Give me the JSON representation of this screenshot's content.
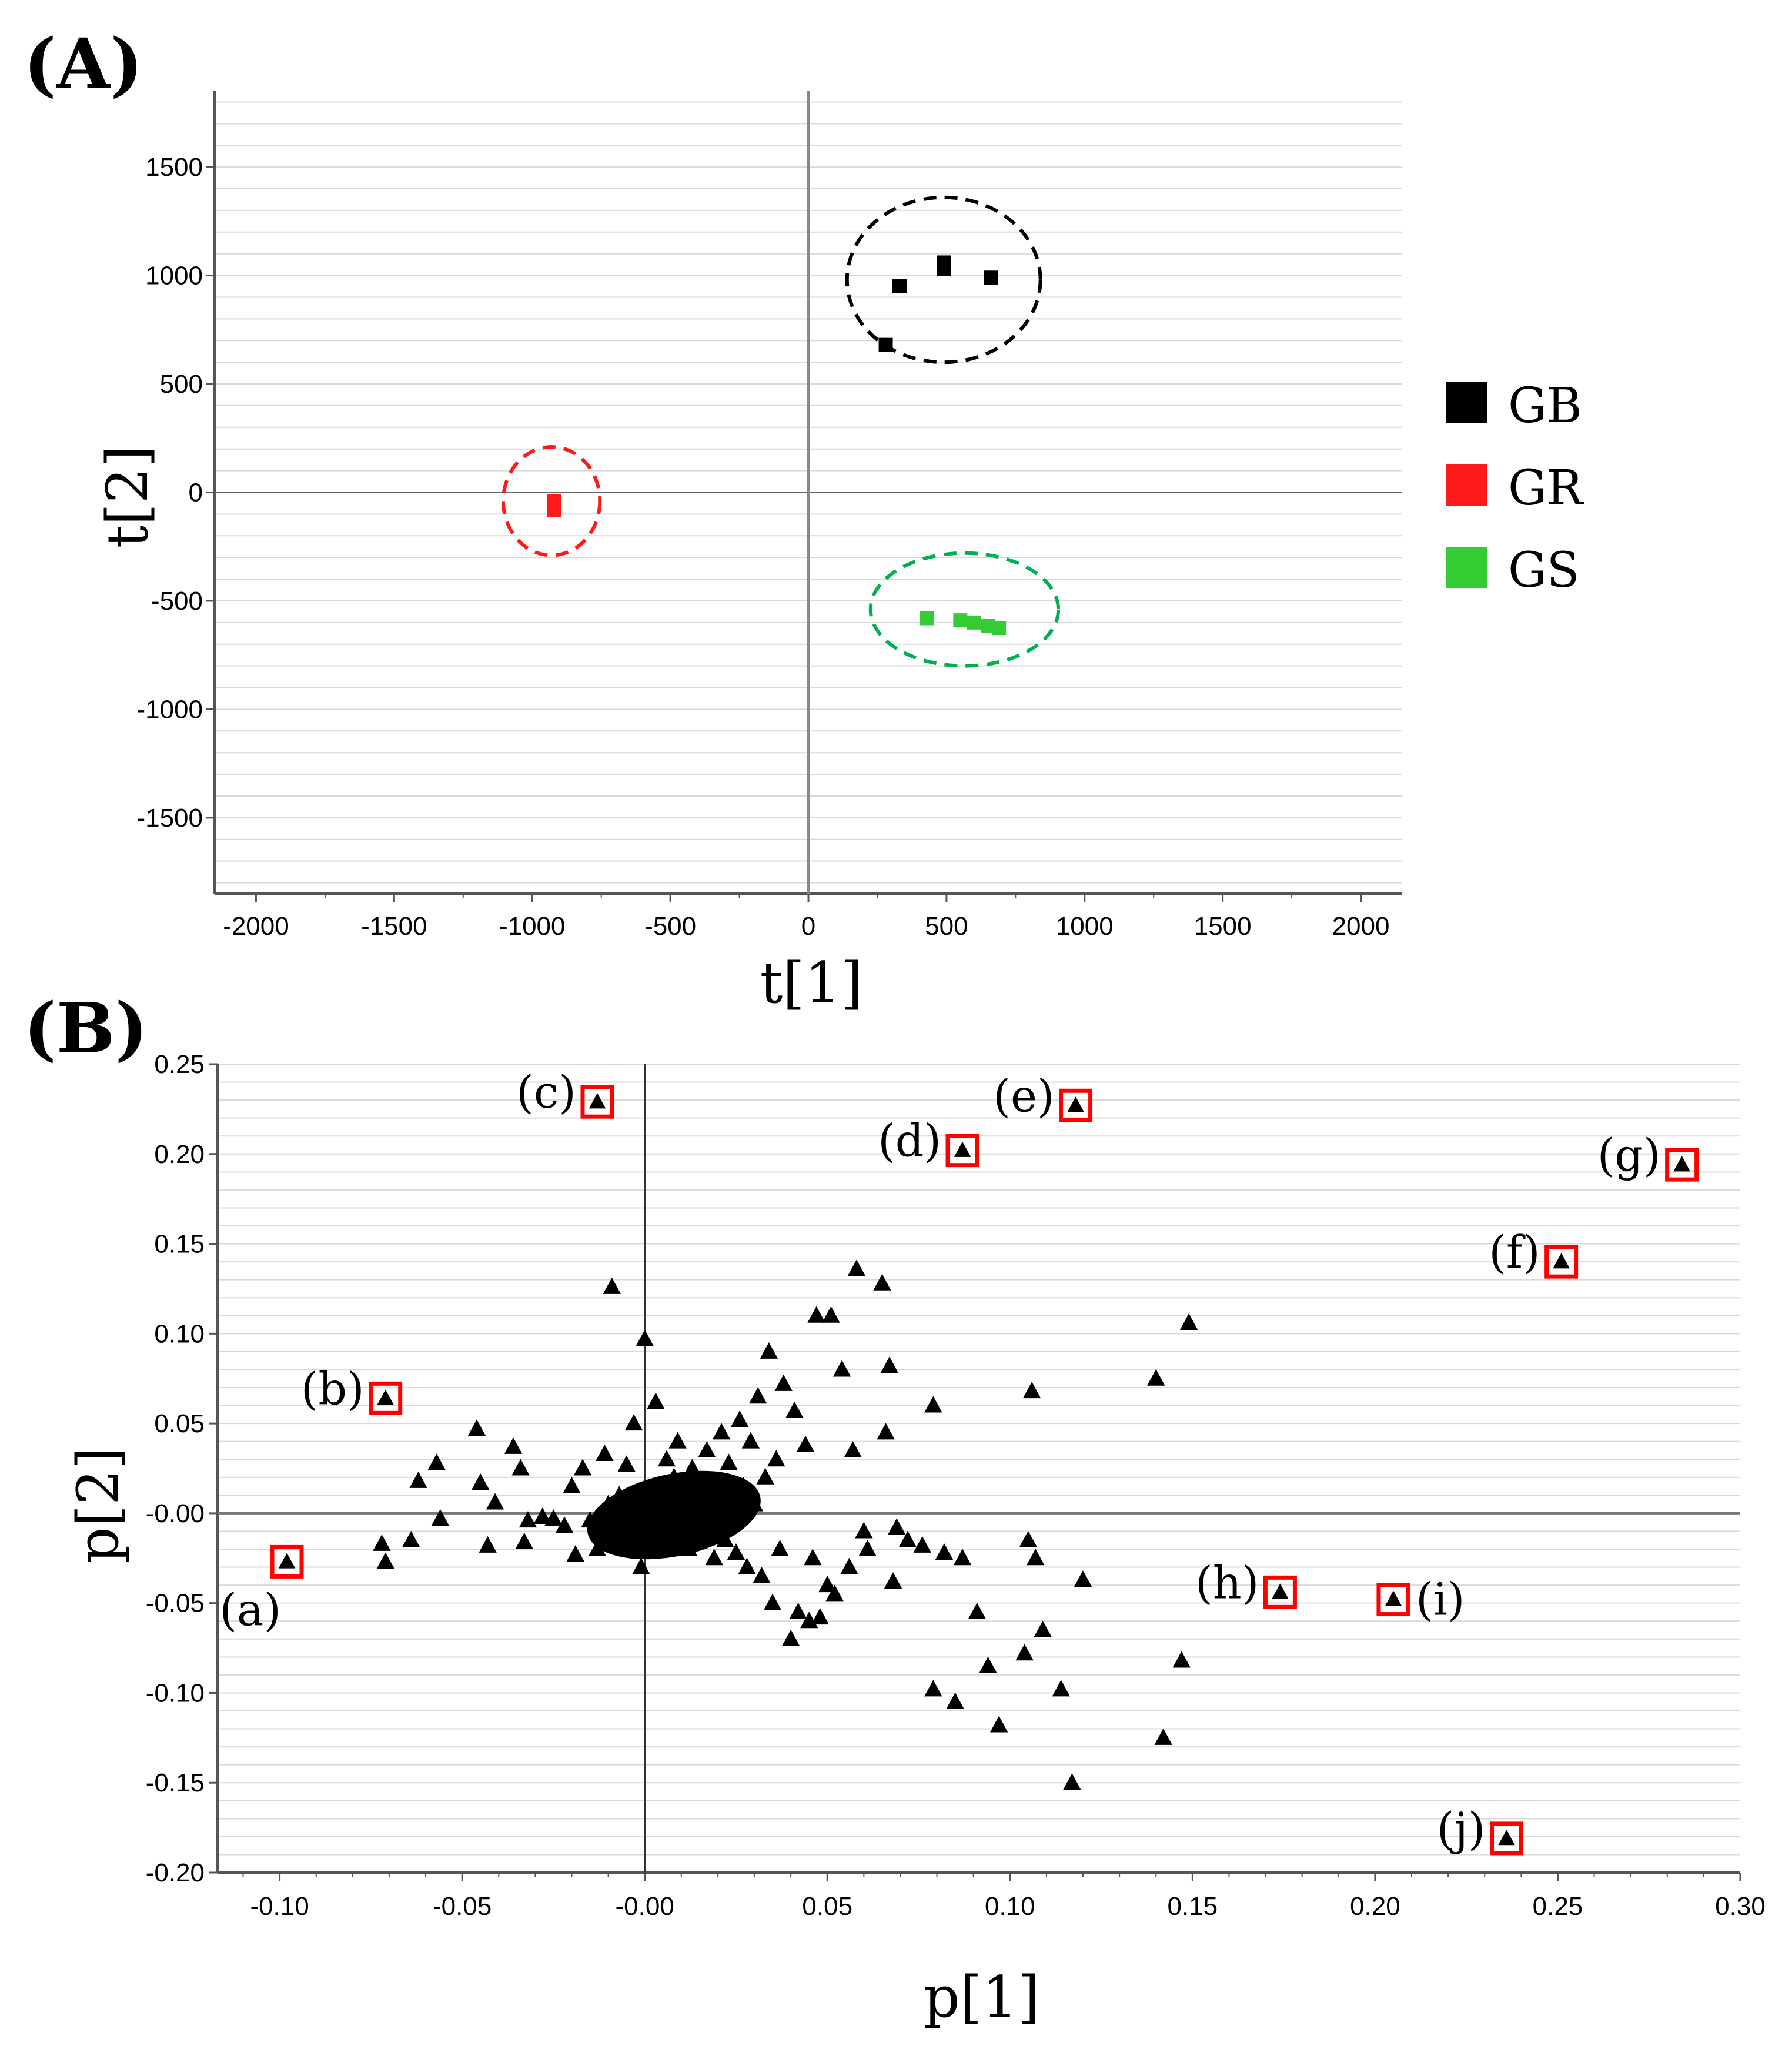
{
  "panels": {
    "a_label": "(A)",
    "b_label": "(B)"
  },
  "chart_data": [
    {
      "type": "scatter",
      "title": "",
      "xlabel": "t[1]",
      "ylabel": "t[2]",
      "xlim": [
        -2150,
        2150
      ],
      "ylim": [
        -1850,
        1850
      ],
      "xticks": [
        -2000,
        -1500,
        -1000,
        -500,
        0,
        500,
        1000,
        1500,
        2000
      ],
      "yticks": [
        -1500,
        -1000,
        -500,
        0,
        500,
        1000,
        1500
      ],
      "grid": "horizontal",
      "legend_position": "right",
      "series": [
        {
          "name": "GB",
          "color": "#000000",
          "points": [
            [
              330,
              950
            ],
            [
              490,
              1060
            ],
            [
              490,
              1030
            ],
            [
              660,
              990
            ],
            [
              280,
              680
            ]
          ],
          "ellipse": {
            "cx": 490,
            "cy": 980,
            "rx": 350,
            "ry": 380,
            "color": "#000000"
          }
        },
        {
          "name": "GR",
          "color": "#ff1a1a",
          "points": [
            [
              -920,
              -40
            ],
            [
              -920,
              -80
            ]
          ],
          "ellipse": {
            "cx": -930,
            "cy": -40,
            "rx": 175,
            "ry": 250,
            "color": "#ff1a1a"
          }
        },
        {
          "name": "GS",
          "color": "#33cc33",
          "points": [
            [
              430,
              -580
            ],
            [
              550,
              -590
            ],
            [
              600,
              -600
            ],
            [
              650,
              -615
            ],
            [
              690,
              -625
            ]
          ],
          "ellipse": {
            "cx": 565,
            "cy": -540,
            "rx": 340,
            "ry": 260,
            "color": "#00b050"
          }
        }
      ]
    },
    {
      "type": "scatter",
      "title": "",
      "xlabel": "p[1]",
      "ylabel": "p[2]",
      "xlim": [
        -0.117,
        0.3
      ],
      "ylim": [
        -0.2,
        0.25
      ],
      "xticks": [
        "-0.10",
        "-0.05",
        "-0.00",
        "0.05",
        "0.10",
        "0.15",
        "0.20",
        "0.25",
        "0.30"
      ],
      "xtick_values": [
        -0.1,
        -0.05,
        0.0,
        0.05,
        0.1,
        0.15,
        0.2,
        0.25,
        0.3
      ],
      "yticks": [
        "0.25",
        "0.20",
        "0.15",
        "0.10",
        "0.05",
        "-0.00",
        "-0.05",
        "-0.10",
        "-0.15",
        "-0.20"
      ],
      "ytick_values": [
        0.25,
        0.2,
        0.15,
        0.1,
        0.05,
        0.0,
        -0.05,
        -0.1,
        -0.15,
        -0.2
      ],
      "grid": "horizontal",
      "marker": "triangle",
      "points": [
        [
          -0.072,
          -0.017
        ],
        [
          -0.071,
          -0.027
        ],
        [
          -0.064,
          -0.015
        ],
        [
          -0.062,
          0.018
        ],
        [
          -0.057,
          0.028
        ],
        [
          -0.056,
          -0.003
        ],
        [
          -0.046,
          0.047
        ],
        [
          -0.045,
          0.017
        ],
        [
          -0.043,
          -0.018
        ],
        [
          -0.041,
          0.006
        ],
        [
          -0.036,
          0.037
        ],
        [
          -0.034,
          0.025
        ],
        [
          -0.033,
          -0.016
        ],
        [
          -0.032,
          -0.004
        ],
        [
          -0.028,
          -0.002
        ],
        [
          -0.025,
          -0.003
        ],
        [
          -0.022,
          -0.007
        ],
        [
          -0.02,
          0.015
        ],
        [
          -0.019,
          -0.023
        ],
        [
          -0.017,
          0.025
        ],
        [
          -0.015,
          -0.004
        ],
        [
          -0.013,
          -0.02
        ],
        [
          -0.011,
          0.033
        ],
        [
          -0.01,
          -0.006
        ],
        [
          -0.009,
          0.126
        ],
        [
          -0.01,
          0.005
        ],
        [
          -0.009,
          -0.015
        ],
        [
          -0.008,
          -0.003
        ],
        [
          -0.007,
          0.01
        ],
        [
          -0.005,
          0.027
        ],
        [
          -0.004,
          -0.01
        ],
        [
          -0.003,
          0.05
        ],
        [
          -0.002,
          0.005
        ],
        [
          -0.001,
          -0.03
        ],
        [
          0.0,
          0.097
        ],
        [
          0.001,
          0.008
        ],
        [
          0.002,
          -0.012
        ],
        [
          0.003,
          0.062
        ],
        [
          0.004,
          0.015
        ],
        [
          0.005,
          -0.018
        ],
        [
          0.006,
          0.03
        ],
        [
          0.007,
          -0.003
        ],
        [
          0.008,
          0.02
        ],
        [
          0.009,
          0.04
        ],
        [
          0.01,
          -0.008
        ],
        [
          0.011,
          0.012
        ],
        [
          0.012,
          -0.02
        ],
        [
          0.013,
          0.025
        ],
        [
          0.014,
          0.005
        ],
        [
          0.015,
          -0.012
        ],
        [
          0.016,
          0.018
        ],
        [
          0.017,
          0.035
        ],
        [
          0.018,
          -0.005
        ],
        [
          0.019,
          -0.025
        ],
        [
          0.02,
          0.01
        ],
        [
          0.021,
          0.045
        ],
        [
          0.022,
          -0.015
        ],
        [
          0.023,
          0.028
        ],
        [
          0.024,
          0.002
        ],
        [
          0.025,
          -0.022
        ],
        [
          0.026,
          0.052
        ],
        [
          0.027,
          0.015
        ],
        [
          0.028,
          -0.03
        ],
        [
          0.029,
          0.04
        ],
        [
          0.03,
          0.005
        ],
        [
          0.031,
          0.065
        ],
        [
          0.032,
          -0.035
        ],
        [
          0.033,
          0.02
        ],
        [
          0.034,
          0.09
        ],
        [
          0.035,
          -0.05
        ],
        [
          0.036,
          0.03
        ],
        [
          0.037,
          -0.02
        ],
        [
          0.038,
          0.072
        ],
        [
          0.04,
          -0.07
        ],
        [
          0.041,
          0.057
        ],
        [
          0.042,
          -0.055
        ],
        [
          0.044,
          0.038
        ],
        [
          0.045,
          -0.06
        ],
        [
          0.046,
          -0.025
        ],
        [
          0.047,
          0.11
        ],
        [
          0.048,
          -0.058
        ],
        [
          0.05,
          -0.04
        ],
        [
          0.051,
          0.11
        ],
        [
          0.052,
          -0.045
        ],
        [
          0.054,
          0.08
        ],
        [
          0.056,
          -0.03
        ],
        [
          0.057,
          0.035
        ],
        [
          0.058,
          0.136
        ],
        [
          0.06,
          -0.01
        ],
        [
          0.061,
          -0.02
        ],
        [
          0.065,
          0.128
        ],
        [
          0.066,
          0.045
        ],
        [
          0.067,
          0.082
        ],
        [
          0.068,
          -0.038
        ],
        [
          0.069,
          -0.008
        ],
        [
          0.072,
          -0.015
        ],
        [
          0.076,
          -0.018
        ],
        [
          0.079,
          -0.098
        ],
        [
          0.079,
          0.06
        ],
        [
          0.082,
          -0.022
        ],
        [
          0.085,
          -0.105
        ],
        [
          0.087,
          -0.025
        ],
        [
          0.091,
          -0.055
        ],
        [
          0.094,
          -0.085
        ],
        [
          0.097,
          -0.118
        ],
        [
          0.104,
          -0.078
        ],
        [
          0.105,
          -0.015
        ],
        [
          0.106,
          0.068
        ],
        [
          0.107,
          -0.025
        ],
        [
          0.109,
          -0.065
        ],
        [
          0.114,
          -0.098
        ],
        [
          0.117,
          -0.15
        ],
        [
          0.12,
          -0.037
        ],
        [
          0.14,
          0.075
        ],
        [
          0.142,
          -0.125
        ],
        [
          0.147,
          -0.082
        ],
        [
          0.149,
          0.106
        ]
      ],
      "highlighted": [
        {
          "label": "(a)",
          "x": -0.098,
          "y": -0.027,
          "label_side": "below-left"
        },
        {
          "label": "(b)",
          "x": -0.071,
          "y": 0.064,
          "label_side": "left"
        },
        {
          "label": "(c)",
          "x": -0.013,
          "y": 0.229,
          "label_side": "left"
        },
        {
          "label": "(d)",
          "x": 0.087,
          "y": 0.202,
          "label_side": "left"
        },
        {
          "label": "(e)",
          "x": 0.118,
          "y": 0.227,
          "label_side": "left"
        },
        {
          "label": "(f)",
          "x": 0.251,
          "y": 0.14,
          "label_side": "left"
        },
        {
          "label": "(g)",
          "x": 0.284,
          "y": 0.194,
          "label_side": "left"
        },
        {
          "label": "(h)",
          "x": 0.174,
          "y": -0.044,
          "label_side": "left"
        },
        {
          "label": "(i)",
          "x": 0.205,
          "y": -0.048,
          "label_side": "right"
        },
        {
          "label": "(j)",
          "x": 0.236,
          "y": -0.181,
          "label_side": "left"
        }
      ],
      "highlight_color": "#ff0000"
    }
  ]
}
